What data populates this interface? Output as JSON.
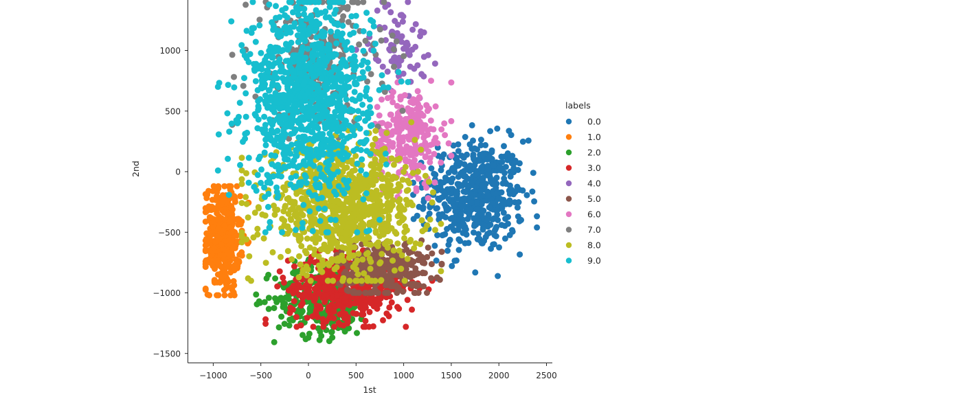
{
  "chart_data": {
    "type": "scatter",
    "title": "",
    "xlabel": "1st",
    "ylabel": "2nd",
    "xlim": [
      -1270,
      2560
    ],
    "ylim": [
      -1600,
      1420
    ],
    "grid": false,
    "spines": {
      "top": false,
      "right": false,
      "left": true,
      "bottom": true
    },
    "x_ticks": [
      -1000,
      -500,
      0,
      500,
      1000,
      1500,
      2000,
      2500
    ],
    "x_tick_labels": [
      "−1000",
      "−500",
      "0",
      "500",
      "1000",
      "1500",
      "2000",
      "2500"
    ],
    "y_ticks": [
      1000,
      500,
      0,
      -500,
      -1000,
      -1500
    ],
    "y_tick_labels": [
      "1000",
      "500",
      "0",
      "−500",
      "−1000",
      "−1500"
    ],
    "legend": {
      "title": "labels",
      "position": "right-outside-center",
      "entries": [
        "0.0",
        "1.0",
        "2.0",
        "3.0",
        "4.0",
        "5.0",
        "6.0",
        "7.0",
        "8.0",
        "9.0"
      ]
    },
    "marker_radius_px": 4.5,
    "series": [
      {
        "name": "0.0",
        "color": "#1f77b4",
        "center": [
          1750,
          -200
        ],
        "spread": [
          260,
          230
        ],
        "range_x": [
          1100,
          2400
        ],
        "range_y": [
          -880,
          650
        ],
        "count": 520
      },
      {
        "name": "1.0",
        "color": "#ff7f0e",
        "center": [
          -900,
          -550
        ],
        "spread": [
          90,
          220
        ],
        "range_x": [
          -1080,
          -560
        ],
        "range_y": [
          -1020,
          -120
        ],
        "count": 380
      },
      {
        "name": "2.0",
        "color": "#2ca02c",
        "center": [
          150,
          -1050
        ],
        "spread": [
          250,
          150
        ],
        "range_x": [
          -550,
          1700
        ],
        "range_y": [
          -1420,
          -700
        ],
        "count": 330
      },
      {
        "name": "3.0",
        "color": "#d62728",
        "center": [
          400,
          -960
        ],
        "spread": [
          300,
          140
        ],
        "range_x": [
          -450,
          1300
        ],
        "range_y": [
          -1280,
          -650
        ],
        "count": 460
      },
      {
        "name": "4.0",
        "color": "#9467bd",
        "center": [
          950,
          1050
        ],
        "spread": [
          150,
          180
        ],
        "range_x": [
          -1000,
          1350
        ],
        "range_y": [
          -400,
          1400
        ],
        "count": 80
      },
      {
        "name": "5.0",
        "color": "#8c564b",
        "center": [
          800,
          -800
        ],
        "spread": [
          250,
          120
        ],
        "range_x": [
          -100,
          1400
        ],
        "range_y": [
          -1000,
          -150
        ],
        "count": 300
      },
      {
        "name": "6.0",
        "color": "#e377c2",
        "center": [
          1050,
          300
        ],
        "spread": [
          180,
          200
        ],
        "range_x": [
          700,
          1500
        ],
        "range_y": [
          -350,
          750
        ],
        "count": 260
      },
      {
        "name": "7.0",
        "color": "#7f7f7f",
        "center": [
          100,
          900
        ],
        "spread": [
          350,
          300
        ],
        "range_x": [
          -800,
          1000
        ],
        "range_y": [
          -800,
          1400
        ],
        "count": 240
      },
      {
        "name": "8.0",
        "color": "#bcbd22",
        "center": [
          350,
          -300
        ],
        "spread": [
          400,
          250
        ],
        "range_x": [
          -700,
          1600
        ],
        "range_y": [
          -900,
          500
        ],
        "count": 900
      },
      {
        "name": "9.0",
        "color": "#17becf",
        "center": [
          0,
          600
        ],
        "spread": [
          320,
          400
        ],
        "range_x": [
          -950,
          1450
        ],
        "range_y": [
          -500,
          1400
        ],
        "count": 1100
      }
    ],
    "notes": "Dense overlapping 10-class scatter (PCA projection). Top of the plot is clipped at the image edge. Point clouds are approximations of the visible distributions."
  }
}
